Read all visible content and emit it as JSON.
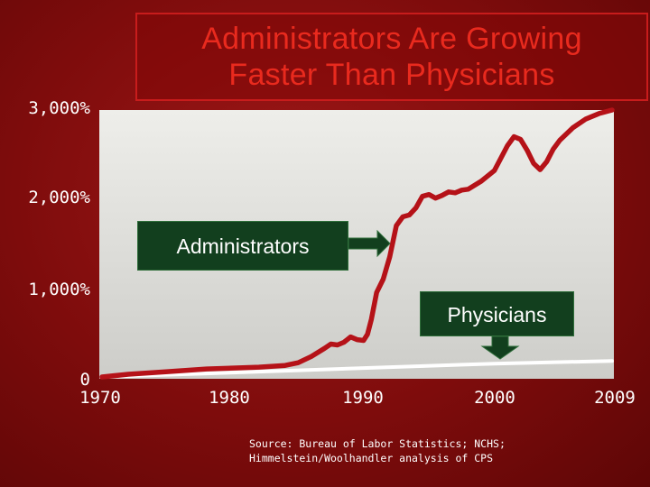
{
  "title": {
    "line1": "Administrators Are Growing",
    "line2": "Faster Than Physicians"
  },
  "source": "Source: Bureau of Labor Statistics; NCHS; Himmelstein/Woolhandler analysis of CPS",
  "colors": {
    "background": "#8e1010",
    "title": "#e92a1e",
    "administrators_line": "#b51218",
    "physicians_line": "#ffffff",
    "callout_fill": "#123f1e"
  },
  "chart_data": {
    "type": "line",
    "title": "Administrators Are Growing Faster Than Physicians",
    "xlabel": "",
    "ylabel": "",
    "xlim": [
      1970,
      2009
    ],
    "ylim": [
      0,
      3000
    ],
    "grid": false,
    "x_ticks": [
      1970,
      1980,
      1990,
      2000,
      2009
    ],
    "x_tick_labels": [
      "1970",
      "1980",
      "1990",
      "2000",
      "2009"
    ],
    "y_ticks": [
      0,
      1000,
      2000,
      3000
    ],
    "y_tick_labels": [
      "0",
      "1,000%",
      "2,000%",
      "3,000%"
    ],
    "callouts": [
      "Administrators",
      "Physicians"
    ],
    "series": [
      {
        "name": "Administrators",
        "color": "#b51218",
        "x": [
          1970,
          1972,
          1975,
          1978,
          1980,
          1982,
          1984,
          1985,
          1986,
          1987,
          1987.5,
          1988,
          1988.5,
          1989,
          1989.5,
          1990,
          1990.3,
          1990.6,
          1991,
          1991.5,
          1992,
          1992.5,
          1993,
          1993.5,
          1994,
          1994.5,
          1995,
          1995.5,
          1996,
          1996.5,
          1997,
          1997.5,
          1998,
          1999,
          2000,
          2001,
          2001.5,
          2002,
          2002.5,
          2003,
          2003.5,
          2004,
          2004.5,
          2005,
          2006,
          2007,
          2008,
          2009
        ],
        "y": [
          0,
          30,
          60,
          90,
          100,
          110,
          130,
          160,
          230,
          320,
          370,
          360,
          390,
          450,
          420,
          410,
          480,
          650,
          950,
          1100,
          1350,
          1700,
          1800,
          1820,
          1900,
          2030,
          2050,
          2010,
          2040,
          2080,
          2070,
          2100,
          2110,
          2200,
          2320,
          2600,
          2700,
          2670,
          2550,
          2400,
          2330,
          2420,
          2560,
          2660,
          2800,
          2900,
          2960,
          3000
        ]
      },
      {
        "name": "Physicians",
        "color": "#ffffff",
        "x": [
          1970,
          1980,
          1990,
          2000,
          2009
        ],
        "y": [
          0,
          50,
          100,
          150,
          180
        ]
      }
    ]
  }
}
